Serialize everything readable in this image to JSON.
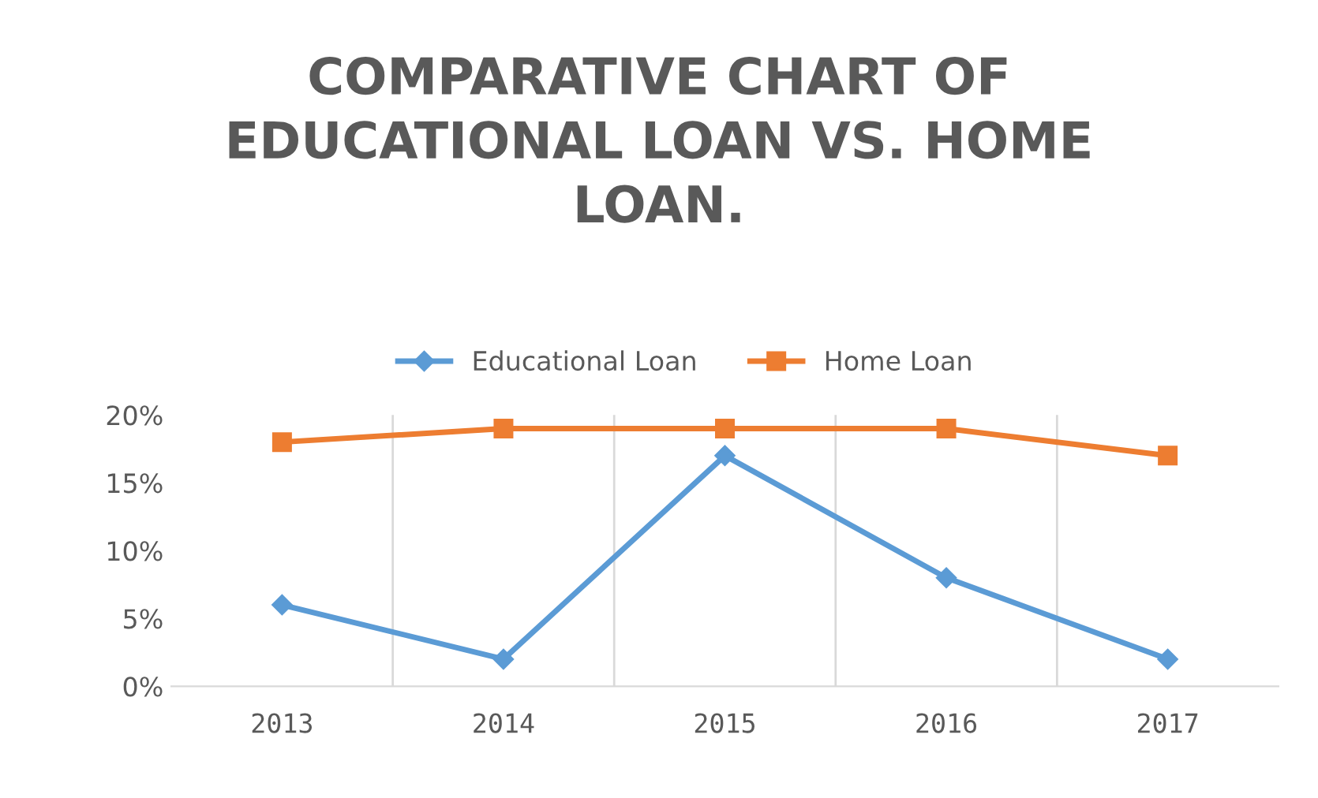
{
  "chart_data": {
    "type": "line",
    "title": "COMPARATIVE CHART OF\nEDUCATIONAL LOAN VS. HOME\nLOAN.",
    "categories": [
      "2013",
      "2014",
      "2015",
      "2016",
      "2017"
    ],
    "series": [
      {
        "name": "Educational Loan",
        "color": "#5b9bd5",
        "marker": "diamond",
        "values": [
          6,
          2,
          17,
          8,
          2
        ]
      },
      {
        "name": "Home Loan",
        "color": "#ed7d31",
        "marker": "square",
        "values": [
          18,
          19,
          19,
          19,
          17
        ]
      }
    ],
    "ylim": [
      0,
      20
    ],
    "yticks": [
      {
        "value": 0,
        "label": "0%"
      },
      {
        "value": 5,
        "label": "5%"
      },
      {
        "value": 10,
        "label": "10%"
      },
      {
        "value": 15,
        "label": "15%"
      },
      {
        "value": 20,
        "label": "20%"
      }
    ],
    "grid": "x",
    "legend": "top",
    "line_style": "solid"
  }
}
